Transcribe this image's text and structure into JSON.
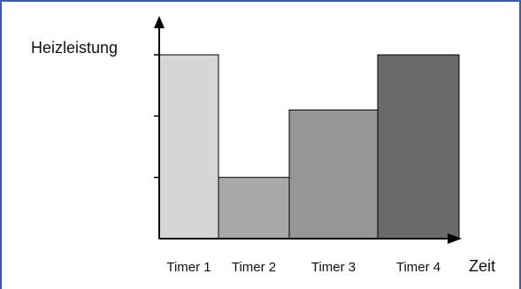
{
  "chart_data": {
    "type": "bar",
    "title": "",
    "ylabel": "Heizleistung",
    "xlabel": "Zeit",
    "categories": [
      "Timer 1",
      "Timer 2",
      "Timer 3",
      "Timer 4"
    ],
    "values": [
      3,
      1,
      2.1,
      3
    ],
    "ylim": [
      0,
      3
    ],
    "colors": [
      "#d6d6d6",
      "#a8a8a8",
      "#969696",
      "#6a6a6a"
    ],
    "yticks": [
      1,
      2,
      3
    ],
    "grid": false,
    "legend": "none"
  }
}
